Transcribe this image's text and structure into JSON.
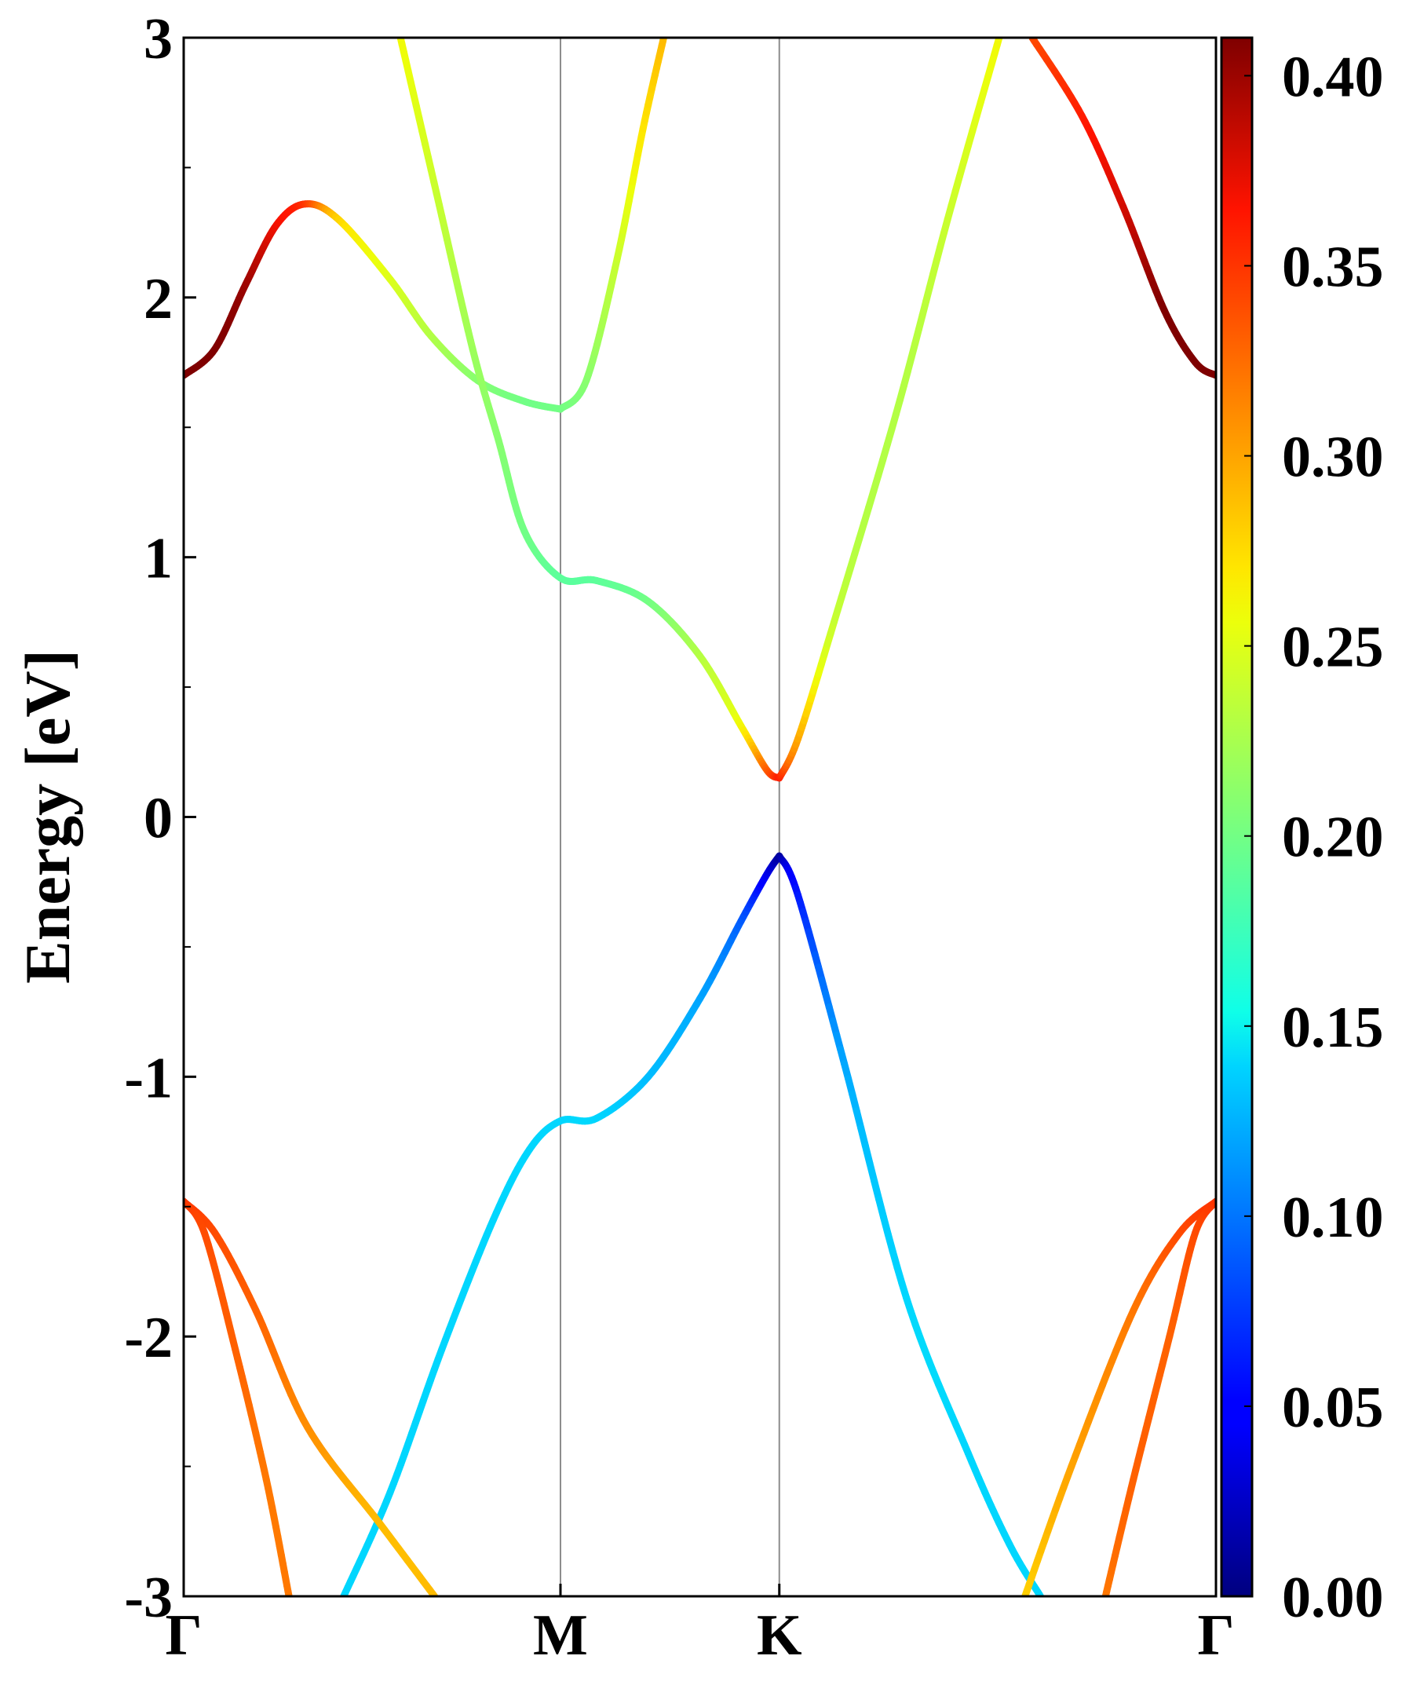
{
  "chart_data": {
    "type": "line",
    "ylabel": "Energy [eV]",
    "ylim": [
      -3,
      3
    ],
    "y_ticks": [
      "3",
      "2",
      "1",
      "0",
      "-1",
      "-2",
      "-3"
    ],
    "k_points": [
      {
        "label": "Γ",
        "pos": 0
      },
      {
        "label": "M",
        "pos": 0.365
      },
      {
        "label": "K",
        "pos": 0.577
      },
      {
        "label": "Γ",
        "pos": 1.0
      }
    ],
    "grid": false,
    "colormap": "jet",
    "colorbar": {
      "range": [
        0,
        0.41
      ],
      "tick_labels": [
        "0.00",
        "0.05",
        "0.10",
        "0.15",
        "0.20",
        "0.25",
        "0.30",
        "0.35",
        "0.40"
      ]
    },
    "series": [
      {
        "points": [
          [
            0.0,
            1.7,
            0.41
          ],
          [
            0.03,
            1.8,
            0.41
          ],
          [
            0.06,
            2.05,
            0.4
          ],
          [
            0.09,
            2.28,
            0.37
          ],
          [
            0.118,
            2.36,
            0.35
          ],
          [
            0.15,
            2.3,
            0.28
          ],
          [
            0.2,
            2.07,
            0.25
          ],
          [
            0.24,
            1.85,
            0.23
          ],
          [
            0.285,
            1.68,
            0.21
          ],
          [
            0.33,
            1.6,
            0.2
          ],
          [
            0.365,
            1.57,
            0.2
          ]
        ]
      },
      {
        "points": [
          [
            0.21,
            3.0,
            0.26
          ],
          [
            0.245,
            2.4,
            0.24
          ],
          [
            0.28,
            1.8,
            0.22
          ],
          [
            0.305,
            1.45,
            0.21
          ],
          [
            0.33,
            1.1,
            0.2
          ],
          [
            0.365,
            0.92,
            0.19
          ],
          [
            0.4,
            0.91,
            0.19
          ],
          [
            0.45,
            0.83,
            0.2
          ],
          [
            0.5,
            0.62,
            0.23
          ],
          [
            0.54,
            0.35,
            0.26
          ],
          [
            0.565,
            0.18,
            0.33
          ],
          [
            0.577,
            0.15,
            0.36
          ]
        ]
      },
      {
        "points": [
          [
            0.365,
            1.57,
            0.2
          ],
          [
            0.39,
            1.68,
            0.21
          ],
          [
            0.42,
            2.15,
            0.24
          ],
          [
            0.445,
            2.65,
            0.27
          ],
          [
            0.465,
            3.0,
            0.29
          ]
        ]
      },
      {
        "points": [
          [
            0.577,
            0.15,
            0.36
          ],
          [
            0.595,
            0.3,
            0.3
          ],
          [
            0.63,
            0.75,
            0.24
          ],
          [
            0.69,
            1.55,
            0.23
          ],
          [
            0.74,
            2.3,
            0.24
          ],
          [
            0.79,
            3.0,
            0.26
          ]
        ]
      },
      {
        "points": [
          [
            0.822,
            3.0,
            0.34
          ],
          [
            0.87,
            2.7,
            0.36
          ],
          [
            0.91,
            2.35,
            0.38
          ],
          [
            0.95,
            1.95,
            0.41
          ],
          [
            0.98,
            1.75,
            0.41
          ],
          [
            1.0,
            1.7,
            0.41
          ]
        ]
      },
      {
        "points": [
          [
            0.155,
            -3.0,
            0.14
          ],
          [
            0.2,
            -2.6,
            0.14
          ],
          [
            0.25,
            -2.05,
            0.14
          ],
          [
            0.3,
            -1.55,
            0.14
          ],
          [
            0.335,
            -1.28,
            0.14
          ],
          [
            0.365,
            -1.17,
            0.14
          ],
          [
            0.4,
            -1.16,
            0.14
          ],
          [
            0.45,
            -1.0,
            0.13
          ],
          [
            0.5,
            -0.7,
            0.12
          ],
          [
            0.54,
            -0.4,
            0.09
          ],
          [
            0.565,
            -0.22,
            0.04
          ],
          [
            0.577,
            -0.15,
            0.01
          ]
        ]
      },
      {
        "points": [
          [
            0.577,
            -0.15,
            0.01
          ],
          [
            0.595,
            -0.3,
            0.06
          ],
          [
            0.64,
            -0.95,
            0.12
          ],
          [
            0.7,
            -1.85,
            0.14
          ],
          [
            0.76,
            -2.45,
            0.14
          ],
          [
            0.8,
            -2.8,
            0.14
          ],
          [
            0.83,
            -3.0,
            0.14
          ]
        ]
      },
      {
        "points": [
          [
            0.0,
            -1.48,
            0.35
          ],
          [
            0.03,
            -1.6,
            0.34
          ],
          [
            0.07,
            -1.9,
            0.33
          ],
          [
            0.12,
            -2.35,
            0.31
          ],
          [
            0.19,
            -2.72,
            0.29
          ],
          [
            0.243,
            -3.0,
            0.29
          ]
        ]
      },
      {
        "points": [
          [
            0.0,
            -1.48,
            0.35
          ],
          [
            0.02,
            -1.6,
            0.34
          ],
          [
            0.05,
            -2.05,
            0.33
          ],
          [
            0.08,
            -2.55,
            0.32
          ],
          [
            0.102,
            -3.0,
            0.32
          ]
        ]
      },
      {
        "points": [
          [
            0.815,
            -3.0,
            0.28
          ],
          [
            0.86,
            -2.5,
            0.3
          ],
          [
            0.92,
            -1.9,
            0.32
          ],
          [
            0.965,
            -1.6,
            0.34
          ],
          [
            1.0,
            -1.48,
            0.35
          ]
        ]
      },
      {
        "points": [
          [
            0.893,
            -3.0,
            0.32
          ],
          [
            0.92,
            -2.55,
            0.33
          ],
          [
            0.955,
            -2.0,
            0.33
          ],
          [
            0.98,
            -1.6,
            0.34
          ],
          [
            1.0,
            -1.48,
            0.35
          ]
        ]
      }
    ]
  }
}
